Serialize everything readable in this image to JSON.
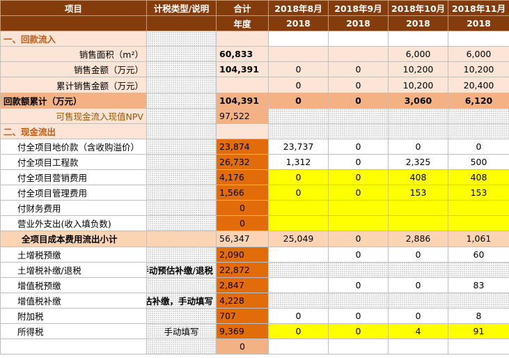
{
  "header": {
    "row1": [
      "项目",
      "计税类型/说明",
      "合计",
      "2018年8月",
      "2018年9月",
      "2018年10月",
      "2018年11月"
    ],
    "row2": [
      "",
      "",
      "年度",
      "2018",
      "2018",
      "2018",
      "2018"
    ]
  },
  "rows": [
    {
      "label": "一、回款流入",
      "note": "",
      "total": "",
      "v": [
        "",
        "",
        "",
        ""
      ]
    },
    {
      "label": "销售面积（m²）",
      "note": "",
      "total": "60,833",
      "v": [
        "",
        "",
        "6,000",
        "6,000"
      ]
    },
    {
      "label": "销售金额（万元）",
      "note": "",
      "total": "104,391",
      "v": [
        "0",
        "0",
        "10,200",
        "10,200"
      ]
    },
    {
      "label": "累计销售金额（万元）",
      "note": "",
      "total": "",
      "v": [
        "0",
        "0",
        "10,200",
        "20,400"
      ]
    },
    {
      "label": "回款额累计（万元）",
      "note": "",
      "total": "104,391",
      "v": [
        "0",
        "0",
        "3,060",
        "6,120"
      ]
    },
    {
      "label": "可售现金流入现值NPV",
      "note": "",
      "total": "97,522",
      "v": [
        "",
        "",
        "",
        ""
      ]
    },
    {
      "label": "二、现金流出",
      "note": "",
      "total": "",
      "v": [
        "",
        "",
        "",
        ""
      ]
    },
    {
      "label": "付全项目地价款（含收购溢价）",
      "note": "",
      "total": "23,874",
      "v": [
        "23,737",
        "0",
        "0",
        "0"
      ]
    },
    {
      "label": "付全项目工程款",
      "note": "",
      "total": "26,732",
      "v": [
        "1,312",
        "0",
        "2,325",
        "500"
      ]
    },
    {
      "label": "付全项目营销费用",
      "note": "",
      "total": "4,176",
      "v": [
        "0",
        "0",
        "408",
        "408"
      ]
    },
    {
      "label": "付全项目管理费用",
      "note": "",
      "total": "1,566",
      "v": [
        "0",
        "0",
        "153",
        "153"
      ]
    },
    {
      "label": "付财务费用",
      "note": "",
      "total": "0",
      "v": [
        "",
        "",
        "",
        ""
      ]
    },
    {
      "label": "营业外支出(收入填负数)",
      "note": "",
      "total": "0",
      "v": [
        "",
        "",
        "",
        ""
      ]
    },
    {
      "label": "全项目成本费用流出小计",
      "note": "",
      "total": "56,347",
      "v": [
        "25,049",
        "0",
        "2,886",
        "1,061"
      ]
    },
    {
      "label": "土增税预缴",
      "note": "",
      "total": "2,090",
      "v": [
        "",
        "0",
        "0",
        "60"
      ]
    },
    {
      "label": "土增税补缴/退税",
      "note": "手动预估补缴/退税",
      "total": "22,872",
      "v": [
        "",
        "",
        "",
        ""
      ]
    },
    {
      "label": "增值税预缴",
      "note": "",
      "total": "2,847",
      "v": [
        "",
        "0",
        "0",
        "83"
      ]
    },
    {
      "label": "增值税补缴",
      "note": "预估补缴，手动填写",
      "total": "4,228",
      "v": [
        "",
        "",
        "",
        ""
      ]
    },
    {
      "label": "附加税",
      "note": "",
      "total": "707",
      "v": [
        "0",
        "0",
        "0",
        "8"
      ]
    },
    {
      "label": "所得税",
      "note": "手动填写",
      "total": "9,369",
      "v": [
        "0",
        "0",
        "4",
        "91"
      ]
    },
    {
      "label": "",
      "note": "",
      "total": "0",
      "v": [
        "",
        "",
        "",
        ""
      ]
    }
  ]
}
